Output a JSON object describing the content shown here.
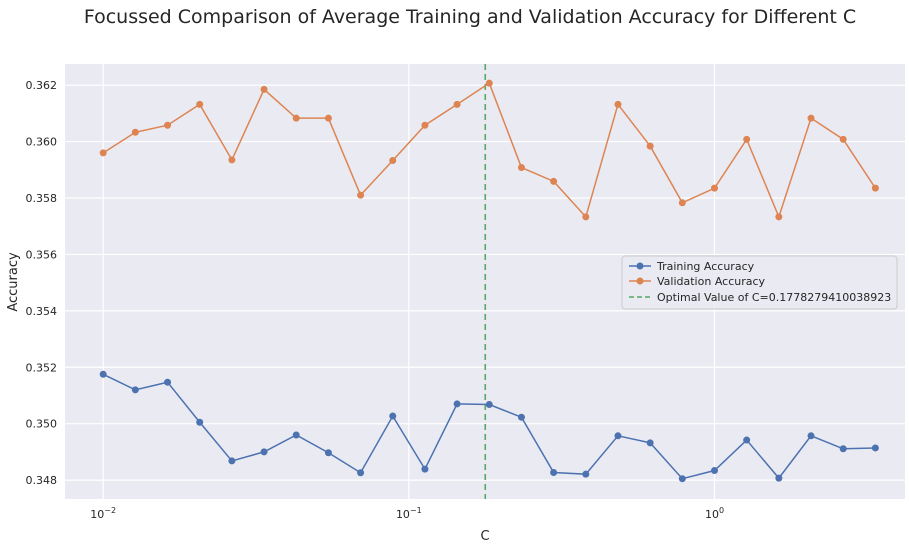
{
  "chart_data": {
    "type": "line",
    "title": "Focussed Comparison of Average Training and Validation Accuracy for Different C",
    "xlabel": "C",
    "ylabel": "Accuracy",
    "xscale": "log",
    "xlim": [
      0.0075,
      4.2
    ],
    "ylim": [
      0.34733,
      0.36275
    ],
    "x_ticks": [
      {
        "value": 0.01,
        "base": "10",
        "exp": "−2"
      },
      {
        "value": 0.1,
        "base": "10",
        "exp": "−1"
      },
      {
        "value": 1,
        "base": "10",
        "exp": "0"
      }
    ],
    "y_ticks": [
      {
        "value": 0.348,
        "label": "0.348"
      },
      {
        "value": 0.35,
        "label": "0.350"
      },
      {
        "value": 0.352,
        "label": "0.352"
      },
      {
        "value": 0.354,
        "label": "0.354"
      },
      {
        "value": 0.356,
        "label": "0.356"
      },
      {
        "value": 0.358,
        "label": "0.358"
      },
      {
        "value": 0.36,
        "label": "0.360"
      },
      {
        "value": 0.362,
        "label": "0.362"
      }
    ],
    "grid": true,
    "legend_position": "center-right",
    "x": [
      0.01,
      0.012743,
      0.016238,
      0.020691,
      0.026367,
      0.033598,
      0.042813,
      0.054556,
      0.069519,
      0.088587,
      0.112884,
      0.143845,
      0.183298,
      0.233572,
      0.297635,
      0.379269,
      0.483293,
      0.615848,
      0.78476,
      1.0,
      1.274275,
      1.623777,
      2.069138,
      2.636651,
      3.359818
    ],
    "series": [
      {
        "name": "Training Accuracy",
        "color": "#4c72b0",
        "values": [
          0.35175,
          0.3512,
          0.35147,
          0.35005,
          0.34868,
          0.349,
          0.3496,
          0.34897,
          0.34826,
          0.35027,
          0.34839,
          0.3507,
          0.35068,
          0.35023,
          0.34827,
          0.34821,
          0.34957,
          0.34932,
          0.34805,
          0.34834,
          0.34942,
          0.34807,
          0.34957,
          0.34911,
          0.34914
        ]
      },
      {
        "name": "Validation Accuracy",
        "color": "#dd8452",
        "values": [
          0.3596,
          0.36033,
          0.36058,
          0.36132,
          0.35935,
          0.36185,
          0.36083,
          0.36083,
          0.3581,
          0.35933,
          0.36058,
          0.36132,
          0.36207,
          0.35908,
          0.35859,
          0.35733,
          0.36132,
          0.35984,
          0.35783,
          0.35835,
          0.36008,
          0.35733,
          0.36083,
          0.36008,
          0.35835
        ]
      }
    ],
    "reference_line": {
      "label": "Optimal Value of C=0.1778279410038923",
      "x": 0.1778279410038923,
      "color": "#55a868",
      "style": "dashed"
    }
  }
}
